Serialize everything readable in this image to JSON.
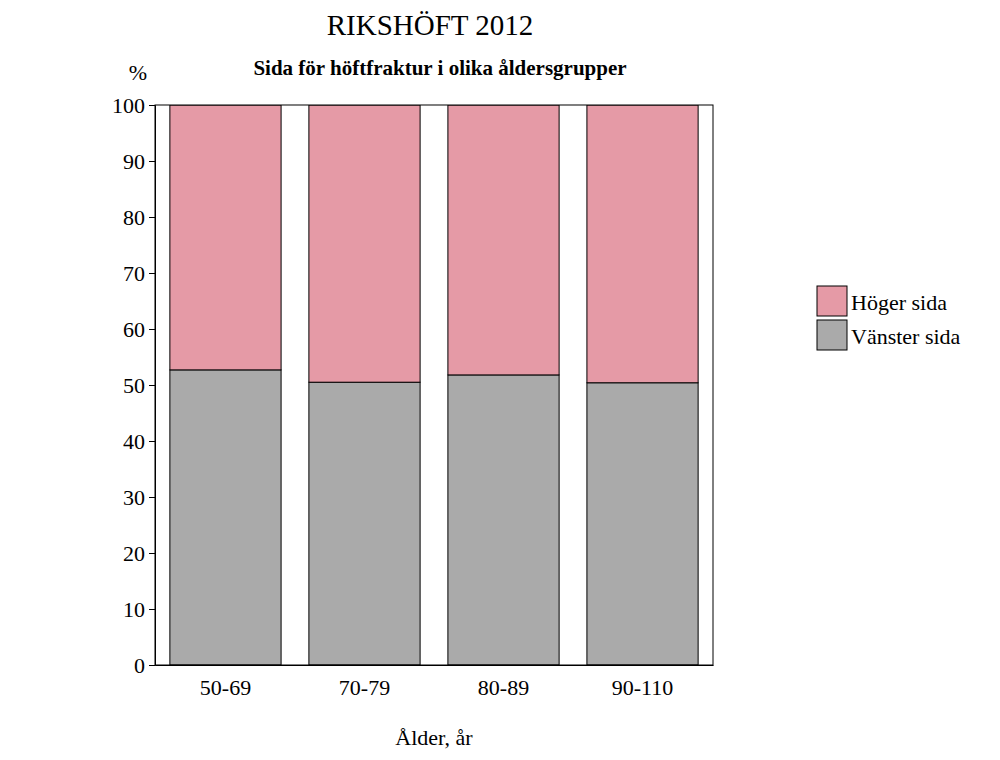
{
  "chart_data": {
    "type": "bar",
    "stacked": true,
    "title": "RIKSHÖFT 2012",
    "subtitle": "Sida för höftfraktur i olika åldersgrupper",
    "x_label": "Ålder, år",
    "y_label": "%",
    "categories": [
      "50-69",
      "70-79",
      "80-89",
      "90-110"
    ],
    "series": [
      {
        "name": "Vänster sida",
        "color": "#aaaaaa",
        "values": [
          52.7,
          50.5,
          51.8,
          50.4
        ]
      },
      {
        "name": "Höger sida",
        "color": "#e59aa6",
        "values": [
          47.3,
          49.5,
          48.2,
          49.6
        ]
      }
    ],
    "ylim": [
      0,
      100
    ],
    "yticks": [
      0,
      10,
      20,
      30,
      40,
      50,
      60,
      70,
      80,
      90,
      100
    ],
    "legend": "right"
  }
}
